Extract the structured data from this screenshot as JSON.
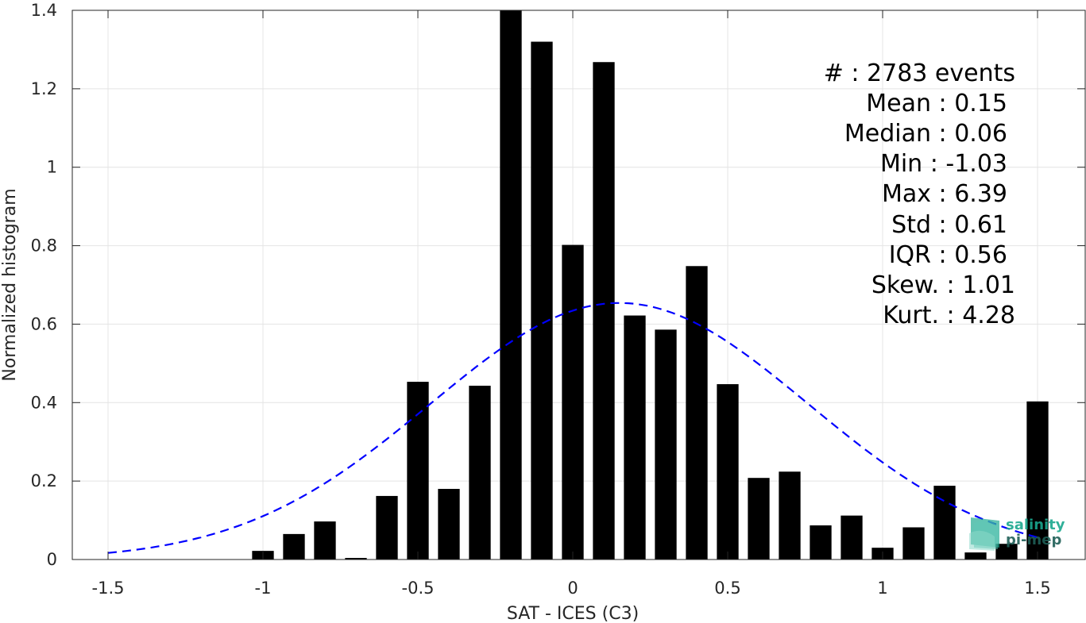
{
  "chart_data": {
    "type": "bar",
    "xlabel": "SAT - ICES (C3)",
    "ylabel": "Normalized histogram",
    "xlim": [
      -1.6,
      1.6
    ],
    "ylim": [
      0,
      1.4
    ],
    "xticks": [
      "-1.5",
      "-1",
      "-0.5",
      "0",
      "0.5",
      "1",
      "1.5"
    ],
    "xtick_values": [
      -1.5,
      -1,
      -0.5,
      0,
      0.5,
      1,
      1.5
    ],
    "yticks": [
      "0",
      "0.2",
      "0.4",
      "0.6",
      "0.8",
      "1",
      "1.2",
      "1.4"
    ],
    "ytick_values": [
      0,
      0.2,
      0.4,
      0.6,
      0.8,
      1,
      1.2,
      1.4
    ],
    "grid": true,
    "bar_width": 0.07,
    "bars": {
      "x": [
        -1.0,
        -0.9,
        -0.8,
        -0.7,
        -0.6,
        -0.5,
        -0.4,
        -0.3,
        -0.2,
        -0.1,
        0.0,
        0.1,
        0.2,
        0.3,
        0.4,
        0.5,
        0.6,
        0.7,
        0.8,
        0.9,
        1.0,
        1.1,
        1.2,
        1.3,
        1.4,
        1.5
      ],
      "values": [
        0.022,
        0.065,
        0.097,
        0.004,
        0.162,
        0.453,
        0.18,
        0.443,
        1.4,
        1.32,
        0.802,
        1.268,
        0.622,
        0.586,
        0.748,
        0.447,
        0.208,
        0.224,
        0.087,
        0.112,
        0.03,
        0.082,
        0.188,
        0.018,
        0.04,
        0.403
      ],
      "color": "#000000"
    },
    "gaussian_fit": {
      "mean": 0.15,
      "std": 0.61,
      "x_range": [
        -1.5,
        1.5
      ],
      "color": "#0000ff",
      "style": "dashed"
    }
  },
  "stats": [
    {
      "label": "#  : 2783 events"
    },
    {
      "label": "Mean : 0.15"
    },
    {
      "label": "Median : 0.06"
    },
    {
      "label": "Min : -1.03"
    },
    {
      "label": "Max : 6.39"
    },
    {
      "label": "Std : 0.61"
    },
    {
      "label": "IQR : 0.56"
    },
    {
      "label": "Skew. : 1.01"
    },
    {
      "label": "Kurt. : 4.28"
    }
  ],
  "logo": {
    "line1": "salinity",
    "line2": "pi-mep",
    "color1": "#1aa88f",
    "color2": "#1f5f57"
  }
}
